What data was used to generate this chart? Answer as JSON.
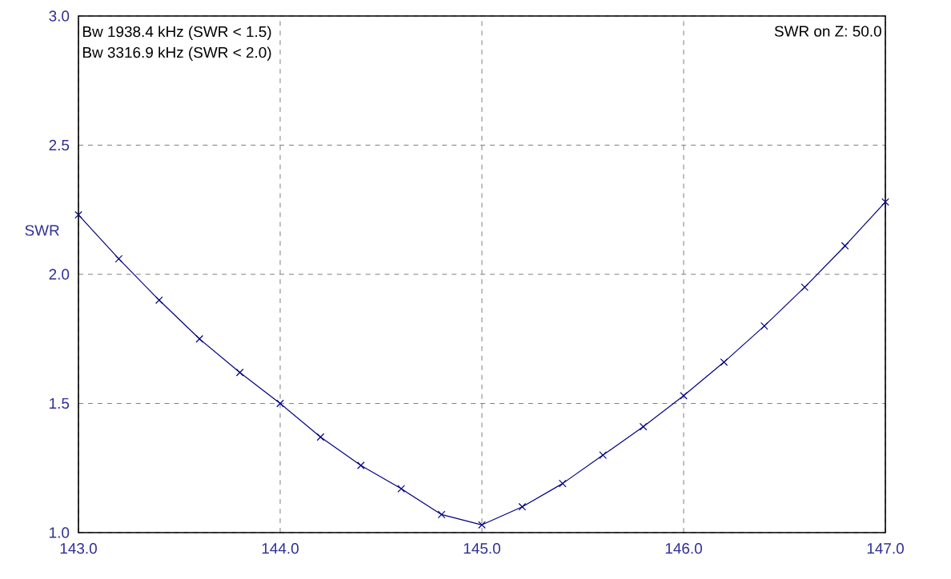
{
  "chart_data": {
    "type": "line",
    "ylabel": "SWR",
    "annotations": [
      "Bw 1938.4 kHz (SWR < 1.5)",
      "Bw 3316.9 kHz (SWR < 2.0)",
      "SWR on Z: 50.0"
    ],
    "x": [
      143.0,
      143.2,
      143.4,
      143.6,
      143.8,
      144.0,
      144.2,
      144.4,
      144.6,
      144.8,
      145.0,
      145.2,
      145.4,
      145.6,
      145.8,
      146.0,
      146.2,
      146.4,
      146.6,
      146.8,
      147.0
    ],
    "series": [
      {
        "color": "#000080",
        "values": [
          2.23,
          2.06,
          1.9,
          1.75,
          1.62,
          1.5,
          1.37,
          1.26,
          1.17,
          1.07,
          1.03,
          1.1,
          1.19,
          1.3,
          1.41,
          1.53,
          1.66,
          1.8,
          1.95,
          2.11,
          2.28
        ]
      }
    ],
    "xlim": [
      143,
      147
    ],
    "ylim": [
      1,
      3
    ],
    "xticks": [
      {
        "value": 143,
        "label": "143.0"
      },
      {
        "value": 144,
        "label": "144.0"
      },
      {
        "value": 145,
        "label": "145.0"
      },
      {
        "value": 146,
        "label": "146.0"
      },
      {
        "value": 147,
        "label": "147.0"
      }
    ],
    "yticks": [
      {
        "value": 1,
        "label": "1.0"
      },
      {
        "value": 1.5,
        "label": "1.5"
      },
      {
        "value": 2,
        "label": "2.0"
      },
      {
        "value": 2.5,
        "label": "2.5"
      },
      {
        "value": 3,
        "label": "3.0"
      }
    ],
    "grid": true,
    "marker": "cross",
    "line_style": "solid"
  }
}
